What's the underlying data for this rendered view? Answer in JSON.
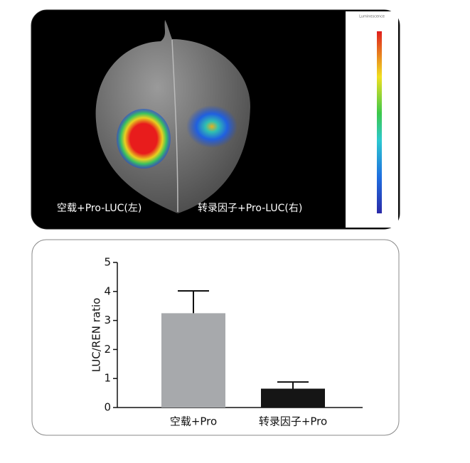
{
  "image": {
    "labels": [
      "空载+Pro-LUC(左)",
      "转录因子+Pro-LUC(右)"
    ],
    "colorbar_title": "Luminescence"
  },
  "chart_data": {
    "type": "bar",
    "y_label": "LUC/REN ratio",
    "categories": [
      "空载+Pro",
      "转录因子+Pro"
    ],
    "values": [
      3.25,
      0.65
    ],
    "errors": [
      0.77,
      0.23
    ],
    "colors": [
      "#a7a9ac",
      "#151515"
    ],
    "ylim": [
      0,
      5
    ],
    "yticks": [
      0,
      1,
      2,
      3,
      4,
      5
    ],
    "grid": false
  }
}
